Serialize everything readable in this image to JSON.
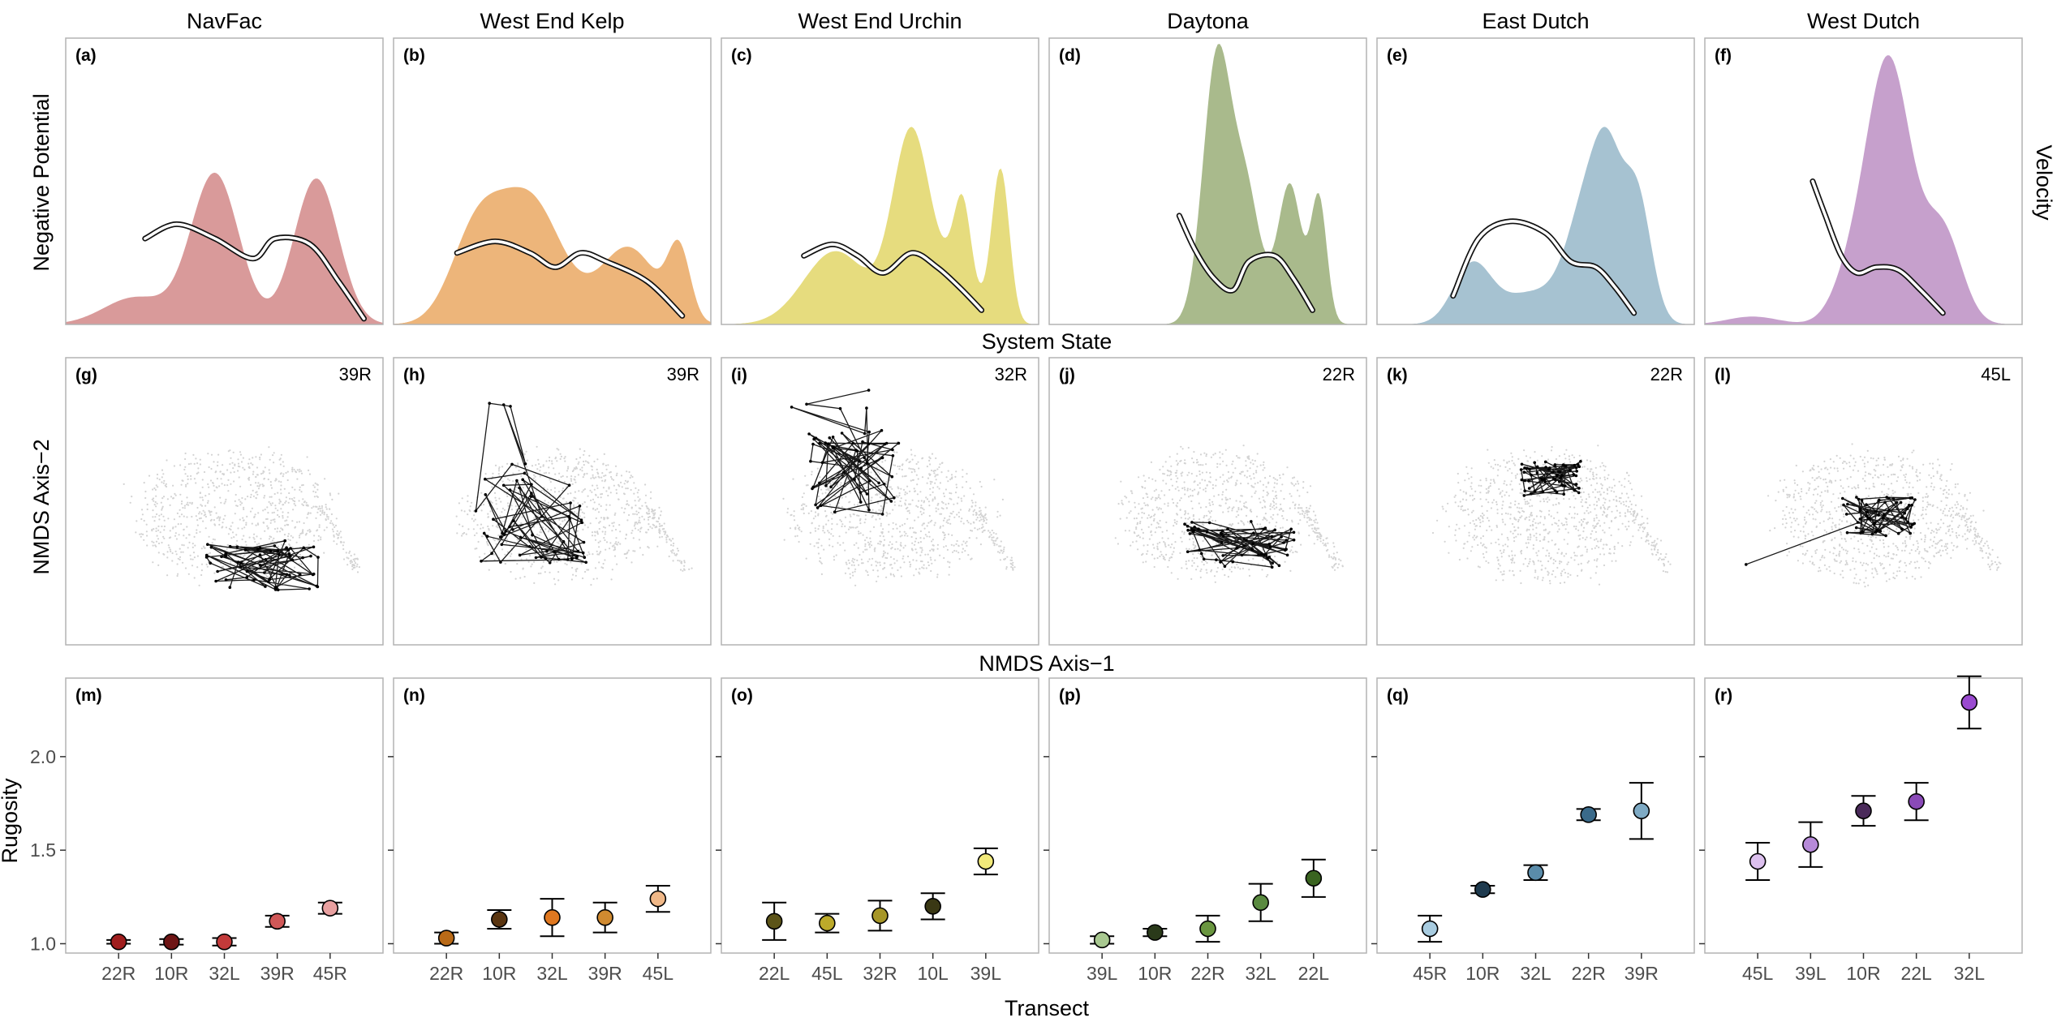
{
  "figure": {
    "ylabel_top": "Negative Potential",
    "xlabel_top": "System State",
    "ylabel_mid": "NMDS Axis−2",
    "xlabel_mid": "NMDS Axis−1",
    "ylabel_bottom": "Rugosity",
    "xlabel_bottom": "Transect",
    "right_strip_label": "Velocity"
  },
  "chart_data": [
    {
      "type": "area",
      "row": "potential",
      "panels": [
        {
          "site": "NavFac",
          "letter": "(a)",
          "colors": [
            "#d99a9a",
            "#c25252",
            "#a02626",
            "#6e1717",
            "#401010"
          ],
          "peak": 0.53
        },
        {
          "site": "West End Kelp",
          "letter": "(b)",
          "colors": [
            "#edb57a",
            "#e08a2e",
            "#b96a17",
            "#7d4510",
            "#3b2508"
          ],
          "peak": 0.48
        },
        {
          "site": "West End Urchin",
          "letter": "(c)",
          "colors": [
            "#e6dc7e",
            "#c9b638",
            "#8e8220",
            "#4f4a14",
            "#1f2008"
          ],
          "peak": 0.69
        },
        {
          "site": "Daytona",
          "letter": "(d)",
          "colors": [
            "#a9ba8c",
            "#7f9a5a",
            "#5a7436",
            "#364a22",
            "#1b2414"
          ],
          "peak": 0.98
        },
        {
          "site": "East Dutch",
          "letter": "(e)",
          "colors": [
            "#a6c2d1",
            "#6f97b3",
            "#3e6b8b",
            "#24475f",
            "#132a3a"
          ],
          "peak": 0.69
        },
        {
          "site": "West Dutch",
          "letter": "(f)",
          "colors": [
            "#c6a0cc",
            "#9c5aaa",
            "#73317f",
            "#4c1f56",
            "#2a1530"
          ],
          "peak": 0.94
        }
      ]
    },
    {
      "type": "scatter",
      "row": "ordination",
      "panels": [
        {
          "letter": "(g)",
          "transect": "39R"
        },
        {
          "letter": "(h)",
          "transect": "39R"
        },
        {
          "letter": "(i)",
          "transect": "32R"
        },
        {
          "letter": "(j)",
          "transect": "22R"
        },
        {
          "letter": "(k)",
          "transect": "22R"
        },
        {
          "letter": "(l)",
          "transect": "45L"
        }
      ]
    },
    {
      "type": "scatter",
      "row": "rugosity",
      "ylim": [
        0.95,
        2.42
      ],
      "yticks": [
        "1.0",
        "1.5",
        "2.0"
      ],
      "panels": [
        {
          "letter": "(m)",
          "categories": [
            "22R",
            "10R",
            "32L",
            "39R",
            "45R"
          ],
          "values": [
            1.01,
            1.01,
            1.01,
            1.12,
            1.19
          ],
          "err": [
            0.01,
            0.015,
            0.02,
            0.03,
            0.03
          ],
          "colors": [
            "#a01e1e",
            "#6e1515",
            "#c23a3a",
            "#d05858",
            "#e8a0a0"
          ]
        },
        {
          "letter": "(n)",
          "categories": [
            "22R",
            "10R",
            "32L",
            "39R",
            "45L"
          ],
          "values": [
            1.03,
            1.13,
            1.14,
            1.14,
            1.24
          ],
          "err": [
            0.03,
            0.05,
            0.1,
            0.08,
            0.07
          ],
          "colors": [
            "#b96a17",
            "#5a3510",
            "#e07820",
            "#d08a30",
            "#f0b888"
          ]
        },
        {
          "letter": "(o)",
          "categories": [
            "22L",
            "45L",
            "32R",
            "10L",
            "39L"
          ],
          "values": [
            1.12,
            1.11,
            1.15,
            1.2,
            1.44
          ],
          "err": [
            0.1,
            0.05,
            0.08,
            0.07,
            0.07
          ],
          "colors": [
            "#5c5418",
            "#bcaa2a",
            "#a69628",
            "#3a3814",
            "#f2ea7a"
          ]
        },
        {
          "letter": "(p)",
          "categories": [
            "39L",
            "10R",
            "22R",
            "32L",
            "22L"
          ],
          "values": [
            1.02,
            1.06,
            1.08,
            1.22,
            1.35
          ],
          "err": [
            0.02,
            0.02,
            0.07,
            0.1,
            0.1
          ],
          "colors": [
            "#a8c890",
            "#2a3a1a",
            "#6a9640",
            "#5a8a40",
            "#3a6420"
          ]
        },
        {
          "letter": "(q)",
          "categories": [
            "45R",
            "10R",
            "32L",
            "22R",
            "39R"
          ],
          "values": [
            1.08,
            1.29,
            1.38,
            1.69,
            1.71
          ],
          "err": [
            0.07,
            0.02,
            0.04,
            0.03,
            0.15
          ],
          "colors": [
            "#a8cce0",
            "#1e3a4e",
            "#5a8caa",
            "#3a6a8a",
            "#7eaac4"
          ]
        },
        {
          "letter": "(r)",
          "categories": [
            "45L",
            "39L",
            "10R",
            "22L",
            "32L"
          ],
          "values": [
            1.44,
            1.53,
            1.71,
            1.76,
            2.29
          ],
          "err": [
            0.1,
            0.12,
            0.08,
            0.1,
            0.14
          ],
          "colors": [
            "#dcc0ee",
            "#b68ad8",
            "#4a2a5a",
            "#8a4ab8",
            "#9a4ad0"
          ]
        }
      ]
    }
  ]
}
